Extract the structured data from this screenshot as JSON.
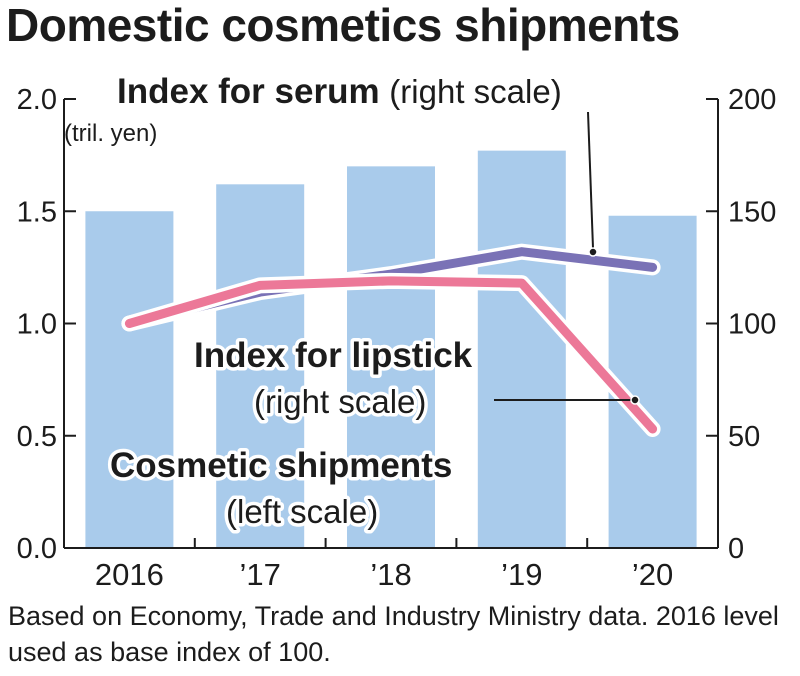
{
  "title": "Domestic cosmetics shipments",
  "chart_data": {
    "type": "bar",
    "categories": [
      "2016",
      "’17",
      "’18",
      "’19",
      "’20"
    ],
    "left_axis": {
      "unit": "(tril. yen)",
      "ylim": [
        0,
        2.0
      ],
      "ticks": [
        "0.0",
        "0.5",
        "1.0",
        "1.5",
        "2.0"
      ]
    },
    "right_axis": {
      "ylim": [
        0,
        200
      ],
      "ticks": [
        "0",
        "50",
        "100",
        "150",
        "200"
      ]
    },
    "series": [
      {
        "name": "Cosmetic shipments",
        "scale_note": "(left scale)",
        "type": "bar",
        "axis": "left",
        "values": [
          1.5,
          1.62,
          1.7,
          1.77,
          1.48
        ],
        "color": "#a9cbeb"
      },
      {
        "name": "Index for serum",
        "scale_note": "(right scale)",
        "type": "line",
        "axis": "right",
        "values": [
          100,
          114,
          122,
          132,
          125
        ],
        "color": "#7a72b6"
      },
      {
        "name": "Index for lipstick",
        "scale_note": "(right scale)",
        "type": "line",
        "axis": "right",
        "values": [
          100,
          117,
          119,
          118,
          53
        ],
        "color": "#ec7898"
      }
    ],
    "grid": false
  },
  "source": "Based on Economy, Trade and Industry Ministry data. 2016 level used as base index of 100."
}
